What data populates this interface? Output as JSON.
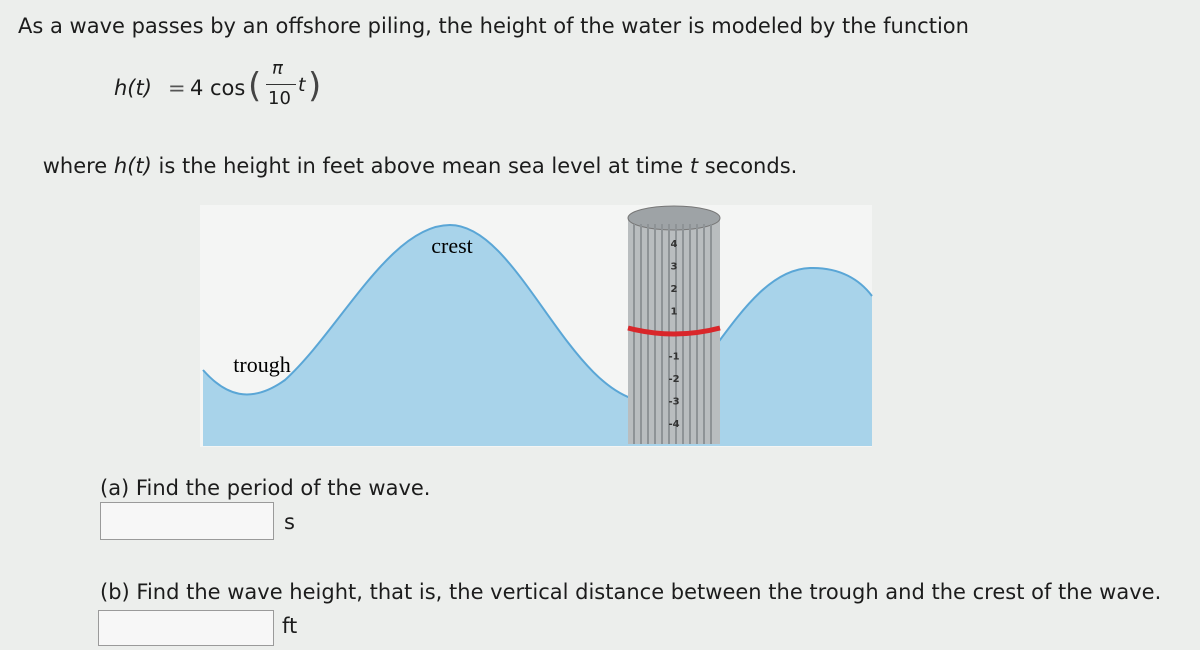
{
  "intro": "As a wave passes by an offshore piling, the height of the water is modeled by the function",
  "formula": {
    "lhs": "h(t)",
    "equals": "=",
    "coefficient": "4",
    "function": "cos",
    "numerator": "π",
    "denominator": "10",
    "variable": "t"
  },
  "where": [
    "where ",
    "h(t)",
    " is the height in feet above mean sea level at time ",
    "t",
    " seconds."
  ],
  "figure": {
    "crest_label": "crest",
    "trough_label": "trough",
    "piling_marks": [
      4,
      3,
      2,
      1,
      -1,
      -2,
      -3,
      -4
    ]
  },
  "part_a": {
    "question": "(a) Find the period of the wave.",
    "unit": "s"
  },
  "part_b": {
    "question": "(b) Find the wave height, that is, the vertical distance between the trough and the crest of the wave.",
    "unit": "ft"
  }
}
